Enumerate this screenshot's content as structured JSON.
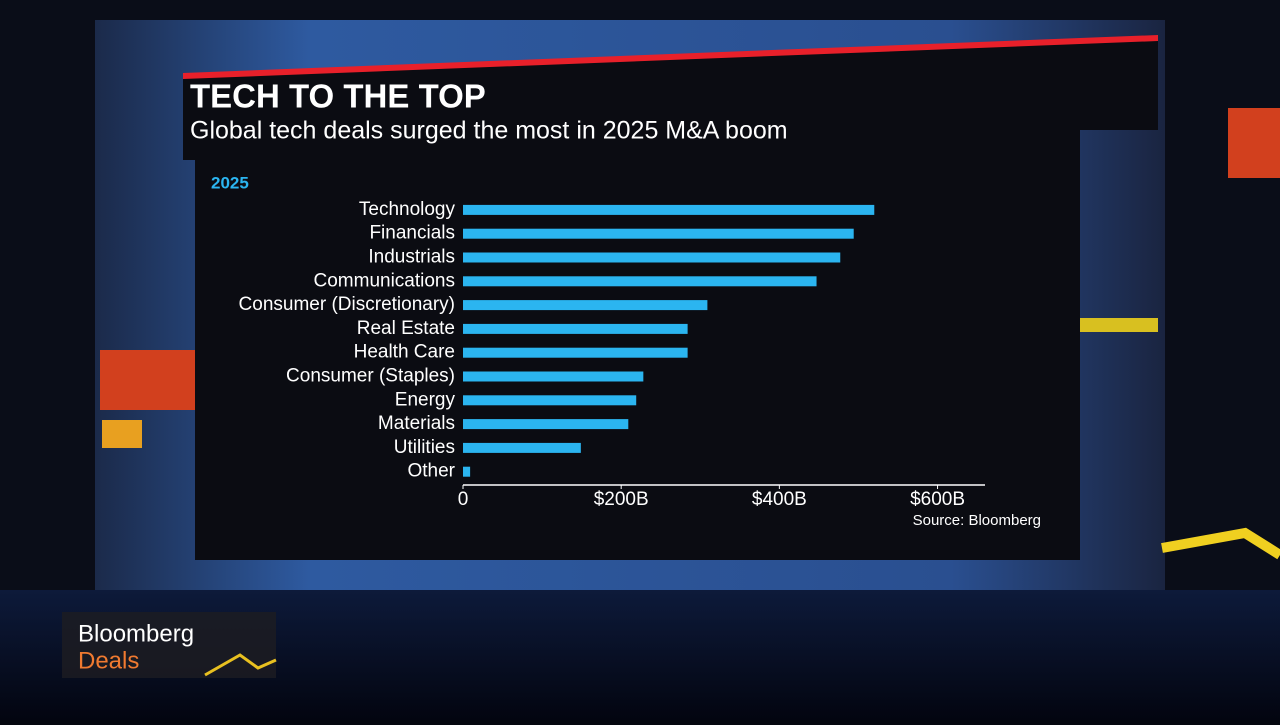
{
  "chart_data": {
    "type": "bar",
    "orientation": "horizontal",
    "title": "TECH TO THE TOP",
    "subtitle": "Global tech deals surged the most in 2025 M&A boom",
    "categories": [
      "Technology",
      "Financials",
      "Industrials",
      "Communications",
      "Consumer (Discretionary)",
      "Real Estate",
      "Health Care",
      "Consumer (Staples)",
      "Energy",
      "Materials",
      "Utilities",
      "Other"
    ],
    "series": [
      {
        "name": "2025",
        "color": "#2bb5f0",
        "values": [
          520,
          494,
          477,
          447,
          309,
          284,
          284,
          228,
          219,
          209,
          149,
          9
        ]
      }
    ],
    "xlim": [
      0,
      660
    ],
    "xticks": [
      0,
      {
        "value": 200,
        "label": "$200B"
      },
      {
        "value": 400,
        "label": "$400B"
      },
      {
        "value": 600,
        "label": "$600B"
      }
    ],
    "source": "Source: Bloomberg"
  },
  "logo": {
    "line1": "Bloomberg",
    "line2": "Deals"
  }
}
